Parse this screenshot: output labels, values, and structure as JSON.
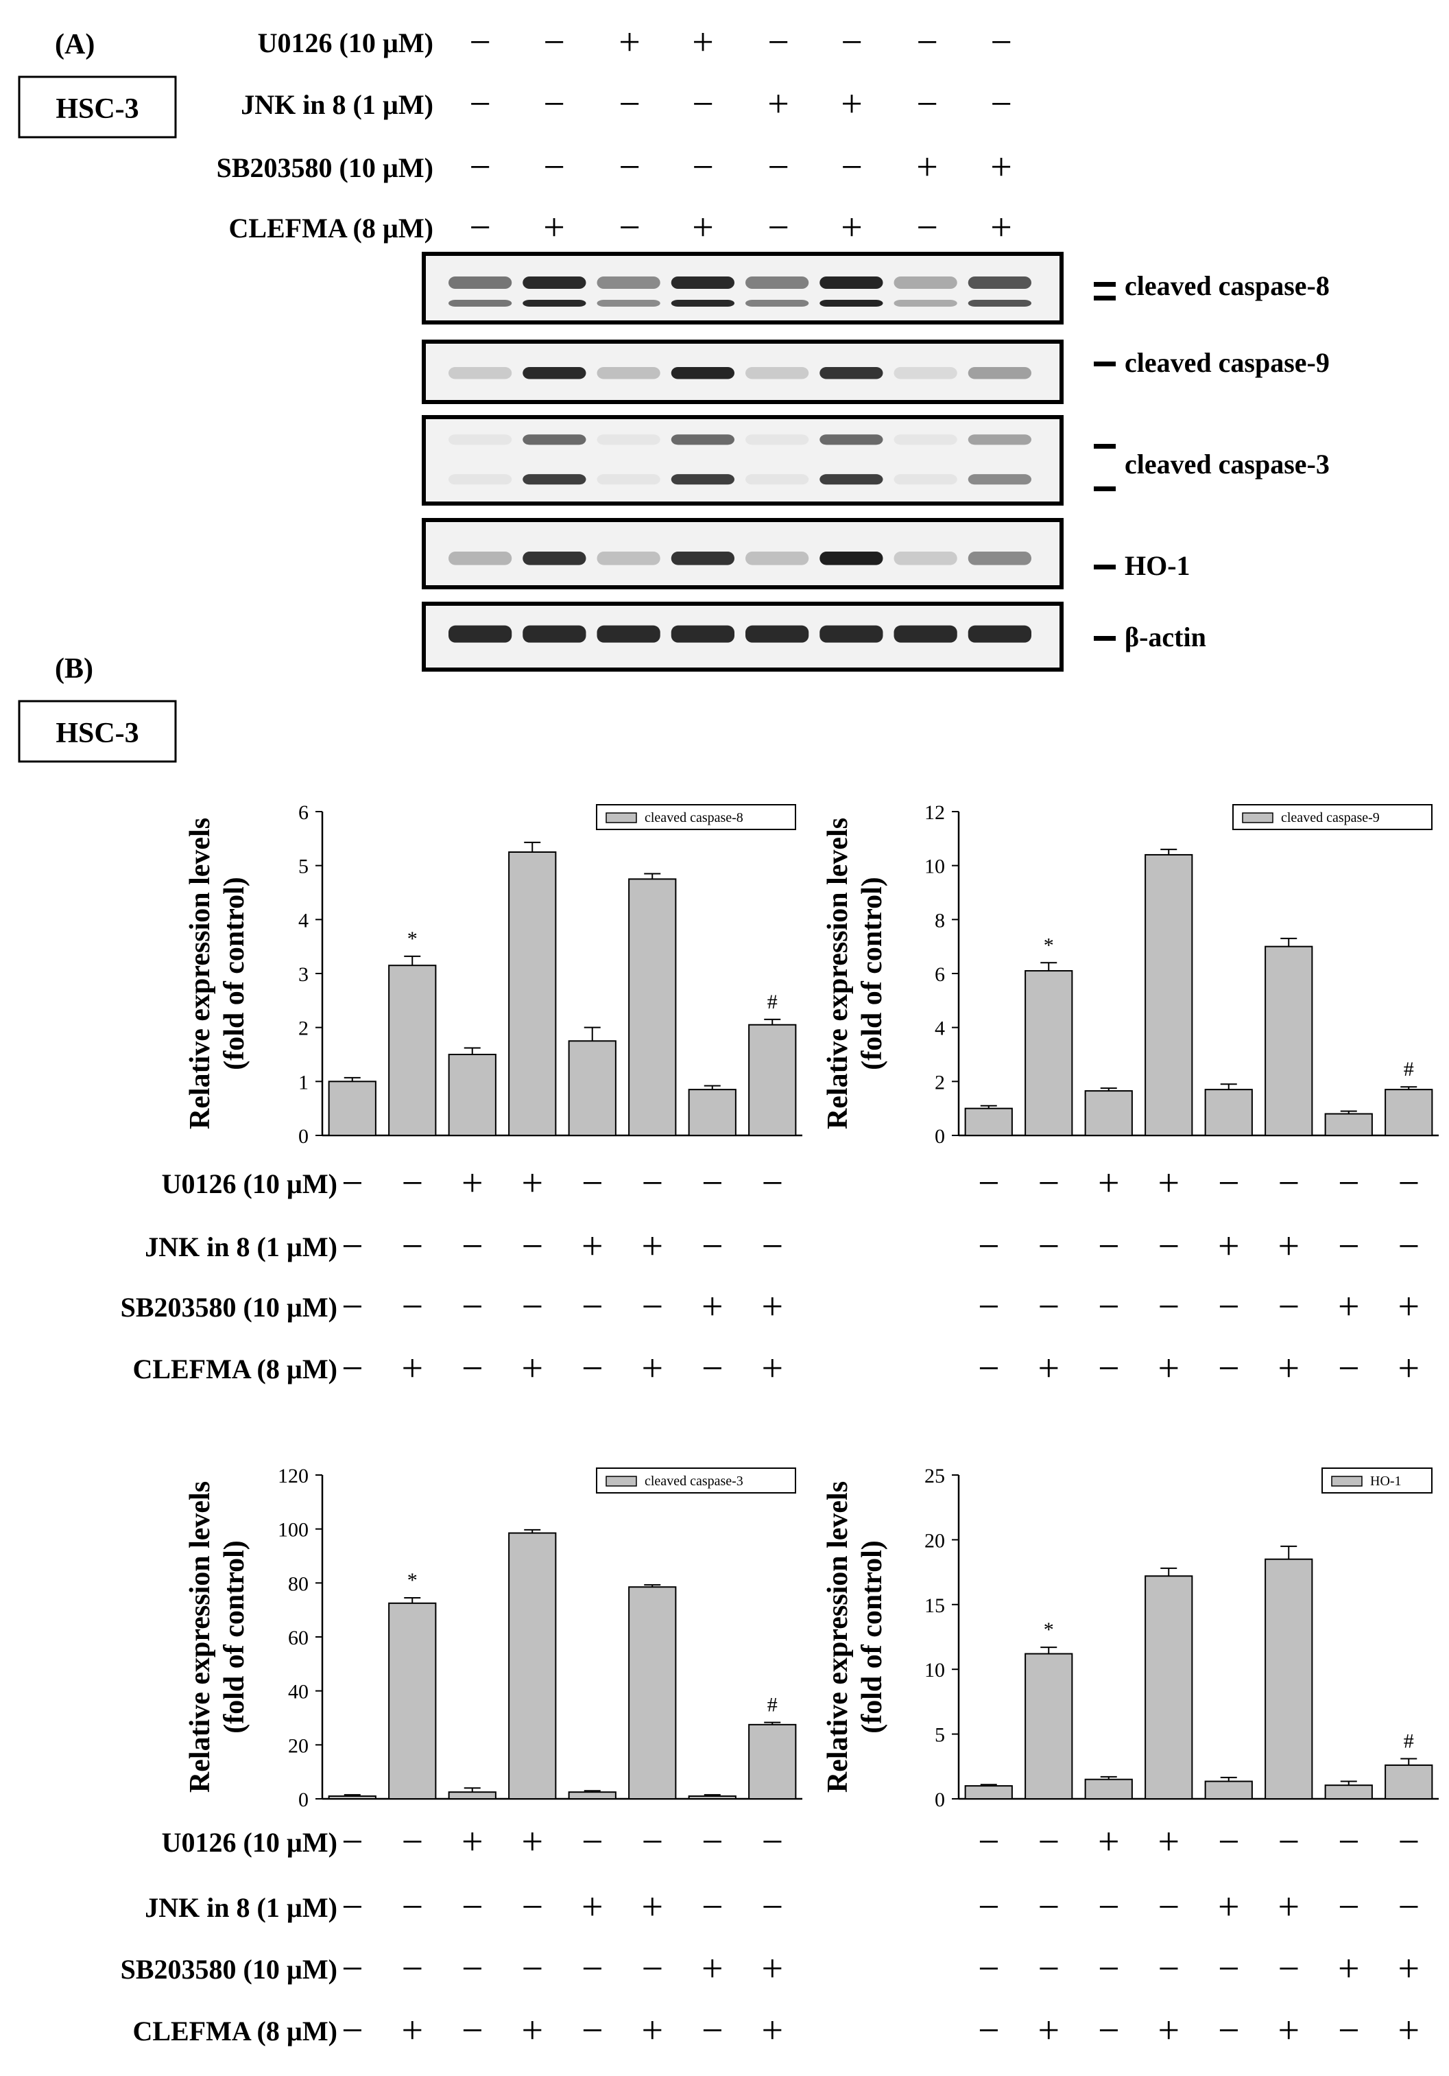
{
  "figure": {
    "panel_a_label": "(A)",
    "panel_b_label": "(B)",
    "cell_line": "HSC-3",
    "treatments": [
      {
        "label": "U0126 (10 µM)",
        "pattern": [
          "−",
          "−",
          "+",
          "+",
          "−",
          "−",
          "−",
          "−"
        ]
      },
      {
        "label": "JNK in 8 (1 µM)",
        "pattern": [
          "−",
          "−",
          "−",
          "−",
          "+",
          "+",
          "−",
          "−"
        ]
      },
      {
        "label": "SB203580 (10 µM)",
        "pattern": [
          "−",
          "−",
          "−",
          "−",
          "−",
          "−",
          "+",
          "+"
        ]
      },
      {
        "label": "CLEFMA (8 µM)",
        "pattern": [
          "−",
          "+",
          "−",
          "+",
          "−",
          "+",
          "−",
          "+"
        ]
      }
    ],
    "blots": [
      {
        "label": "cleaved caspase-8",
        "intensity": [
          0.55,
          0.9,
          0.45,
          0.9,
          0.5,
          0.92,
          0.3,
          0.7
        ]
      },
      {
        "label": "cleaved caspase-9",
        "intensity": [
          0.15,
          0.9,
          0.2,
          0.92,
          0.15,
          0.85,
          0.08,
          0.35
        ]
      },
      {
        "label": "cleaved caspase-3",
        "intensity": [
          0.03,
          0.8,
          0.03,
          0.8,
          0.03,
          0.8,
          0.03,
          0.45
        ]
      },
      {
        "label": "HO-1",
        "intensity": [
          0.25,
          0.85,
          0.2,
          0.85,
          0.2,
          0.95,
          0.15,
          0.45
        ]
      },
      {
        "label": "β-actin",
        "intensity": [
          0.9,
          0.9,
          0.9,
          0.9,
          0.9,
          0.9,
          0.9,
          0.9
        ]
      }
    ],
    "ylabel_line1": "Relative expression levels",
    "ylabel_line2": "(fold of control)"
  },
  "chart_data": [
    {
      "type": "bar",
      "series": [
        {
          "name": "cleaved caspase-8",
          "values": [
            1.0,
            3.15,
            1.5,
            5.25,
            1.75,
            4.75,
            0.85,
            2.05
          ],
          "errors": [
            0.07,
            0.17,
            0.12,
            0.18,
            0.25,
            0.1,
            0.07,
            0.1
          ]
        }
      ],
      "ylim": [
        0,
        6
      ],
      "yticks": [
        0,
        1,
        2,
        3,
        4,
        5,
        6
      ],
      "annotations": [
        {
          "index": 1,
          "text": "*"
        },
        {
          "index": 7,
          "text": "#"
        }
      ]
    },
    {
      "type": "bar",
      "series": [
        {
          "name": "cleaved caspase-9",
          "values": [
            1.0,
            6.1,
            1.65,
            10.4,
            1.7,
            7.0,
            0.8,
            1.7
          ],
          "errors": [
            0.1,
            0.3,
            0.1,
            0.2,
            0.2,
            0.3,
            0.1,
            0.1
          ]
        }
      ],
      "ylim": [
        0,
        12
      ],
      "yticks": [
        0,
        2,
        4,
        6,
        8,
        10,
        12
      ],
      "annotations": [
        {
          "index": 1,
          "text": "*"
        },
        {
          "index": 7,
          "text": "#"
        }
      ]
    },
    {
      "type": "bar",
      "series": [
        {
          "name": "cleaved caspase-3",
          "values": [
            1.0,
            72.5,
            2.5,
            98.5,
            2.5,
            78.5,
            1.0,
            27.5
          ],
          "errors": [
            0.5,
            2.0,
            1.5,
            1.2,
            0.5,
            0.8,
            0.5,
            0.8
          ]
        }
      ],
      "ylim": [
        0,
        120
      ],
      "yticks": [
        0,
        20,
        40,
        60,
        80,
        100,
        120
      ],
      "annotations": [
        {
          "index": 1,
          "text": "*"
        },
        {
          "index": 7,
          "text": "#"
        }
      ]
    },
    {
      "type": "bar",
      "series": [
        {
          "name": "HO-1",
          "values": [
            1.0,
            11.2,
            1.5,
            17.2,
            1.35,
            18.5,
            1.05,
            2.6
          ],
          "errors": [
            0.1,
            0.5,
            0.2,
            0.6,
            0.3,
            1.0,
            0.3,
            0.5
          ]
        }
      ],
      "ylim": [
        0,
        25
      ],
      "yticks": [
        0,
        5,
        10,
        15,
        20,
        25
      ],
      "annotations": [
        {
          "index": 1,
          "text": "*"
        },
        {
          "index": 7,
          "text": "#"
        }
      ]
    }
  ]
}
